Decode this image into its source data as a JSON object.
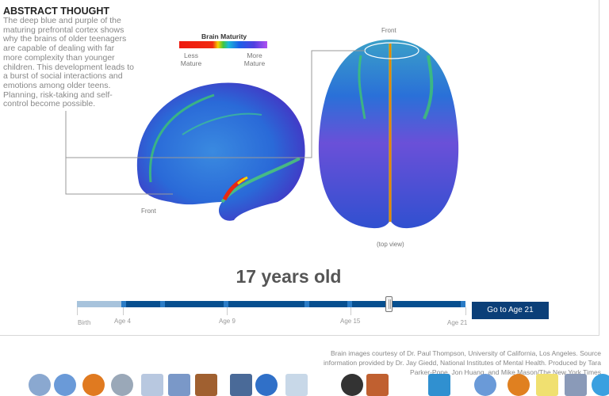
{
  "section": {
    "heading": "ABSTRACT THOUGHT",
    "description": "The deep blue and purple of the maturing prefrontal cortex shows why the brains of older teenagers are capable of dealing with far more complexity than younger children. This development leads to a burst of social interactions and emotions among older teens. Planning, risk-taking and self-control become possible."
  },
  "legend": {
    "title": "Brain Maturity",
    "less": "Less Mature",
    "more": "More Mature",
    "colors": [
      "#ee1a10",
      "#f7d000",
      "#3ec640",
      "#1ab8d8",
      "#1a60e8",
      "#b050f0"
    ]
  },
  "labels": {
    "side_front": "Front",
    "top_front": "Front",
    "top_view": "(top view)"
  },
  "age_display": "17 years old",
  "slider": {
    "value_years": 17,
    "min_years": 0,
    "max_years": 21,
    "ticks": [
      "Birth",
      "Age 4",
      "Age 9",
      "Age 15",
      "Age 21"
    ]
  },
  "goto_button": "Go to Age 21",
  "credit": "Brain images courtesy of Dr. Paul Thompson, University of California, Los Angeles. Source information provided by Dr. Jay Giedd, National Institutes of Mental Health. Produced by Tara Parker-Pope, Jon Huang, and Mike Mason/The New York Times",
  "colors": {
    "accent": "#0b3f78",
    "track": "#074f8f",
    "track_done": "#a7c3dc"
  }
}
